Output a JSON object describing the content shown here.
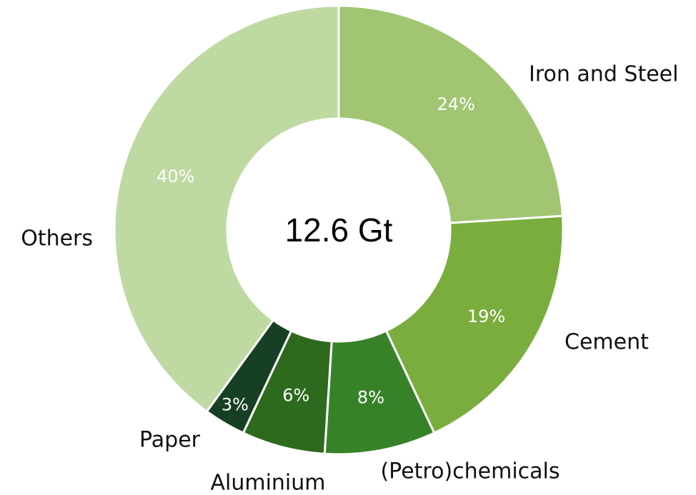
{
  "chart_data": {
    "type": "donut",
    "center_label": "12.6 Gt",
    "categories": [
      "Iron and Steel",
      "Cement",
      "(Petro)chemicals",
      "Aluminium",
      "Paper",
      "Others"
    ],
    "values": [
      24,
      19,
      8,
      6,
      3,
      40
    ],
    "value_labels": [
      "24%",
      "19%",
      "8%",
      "6%",
      "3%",
      "40%"
    ],
    "colors": [
      "#a1c572",
      "#7aad3e",
      "#378228",
      "#2e6a1e",
      "#173f24",
      "#bfd9a2"
    ]
  }
}
